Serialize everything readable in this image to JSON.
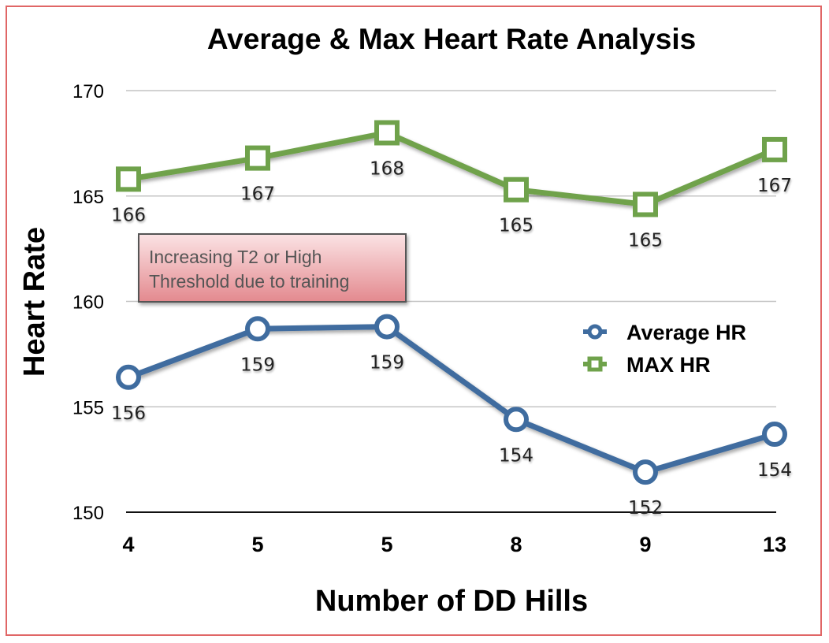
{
  "chart_data": {
    "type": "line",
    "title": "Average & Max Heart Rate Analysis",
    "xlabel": "Number of DD Hills",
    "ylabel": "Heart Rate",
    "categories": [
      "4",
      "5",
      "5",
      "8",
      "9",
      "13"
    ],
    "ylim": [
      150,
      170
    ],
    "yticks": [
      "150",
      "155",
      "160",
      "165",
      "170"
    ],
    "grid": "horizontal",
    "legend_position": "right",
    "series": [
      {
        "name": "Average HR",
        "values": [
          156.4,
          158.7,
          158.8,
          154.4,
          151.9,
          153.7
        ],
        "labels": [
          "156",
          "159",
          "159",
          "154",
          "152",
          "154"
        ],
        "color": "#3f6c9f",
        "marker": "circle"
      },
      {
        "name": "MAX HR",
        "values": [
          165.8,
          166.8,
          168.0,
          165.3,
          164.6,
          167.2
        ],
        "labels": [
          "166",
          "167",
          "168",
          "165",
          "165",
          "167"
        ],
        "color": "#6fa24b",
        "marker": "square"
      }
    ],
    "annotation": {
      "lines": [
        "Increasing T2 or High",
        "Threshold due to training"
      ],
      "background": "#f2a0a4",
      "border": "#555555"
    }
  }
}
